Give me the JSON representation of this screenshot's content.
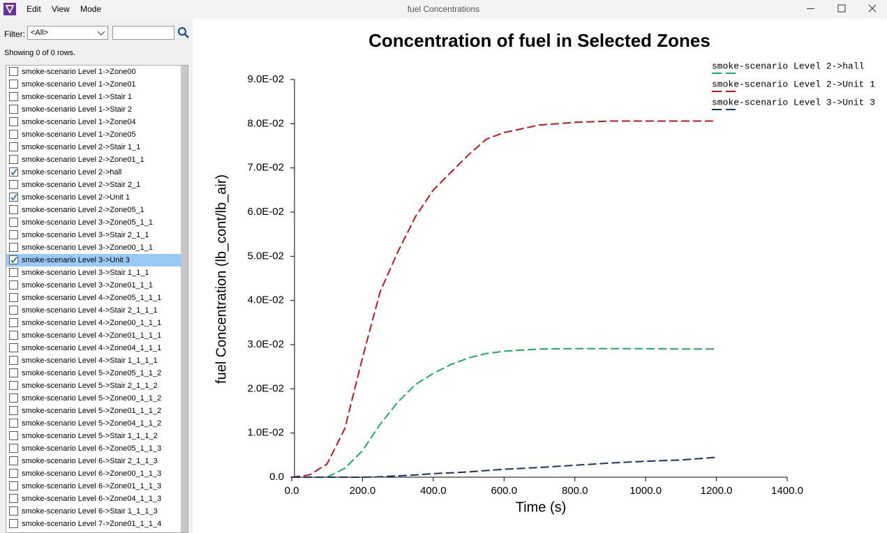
{
  "window": {
    "title": "fuel Concentrations",
    "menu": [
      "Edit",
      "View",
      "Mode"
    ]
  },
  "sidebar": {
    "filter_label": "Filter:",
    "filter_value": "<All>",
    "status": "Showing 0 of 0 rows.",
    "items": [
      {
        "label": "smoke-scenario Level 1->Zone00",
        "checked": false
      },
      {
        "label": "smoke-scenario Level 1->Zone01",
        "checked": false
      },
      {
        "label": "smoke-scenario Level 1->Stair 1",
        "checked": false
      },
      {
        "label": "smoke-scenario Level 1->Stair 2",
        "checked": false
      },
      {
        "label": "smoke-scenario Level 1->Zone04",
        "checked": false
      },
      {
        "label": "smoke-scenario Level 1->Zone05",
        "checked": false
      },
      {
        "label": "smoke-scenario Level 2->Stair 1_1",
        "checked": false
      },
      {
        "label": "smoke-scenario Level 2->Zone01_1",
        "checked": false
      },
      {
        "label": "smoke-scenario Level 2->hall",
        "checked": true
      },
      {
        "label": "smoke-scenario Level 2->Stair 2_1",
        "checked": false
      },
      {
        "label": "smoke-scenario Level 2->Unit 1",
        "checked": true
      },
      {
        "label": "smoke-scenario Level 2->Zone05_1",
        "checked": false
      },
      {
        "label": "smoke-scenario Level 3->Zone05_1_1",
        "checked": false
      },
      {
        "label": "smoke-scenario Level 3->Stair 2_1_1",
        "checked": false
      },
      {
        "label": "smoke-scenario Level 3->Zone00_1_1",
        "checked": false
      },
      {
        "label": "smoke-scenario Level 3->Unit 3",
        "checked": true,
        "selected": true
      },
      {
        "label": "smoke-scenario Level 3->Stair 1_1_1",
        "checked": false
      },
      {
        "label": "smoke-scenario Level 3->Zone01_1_1",
        "checked": false
      },
      {
        "label": "smoke-scenario Level 4->Zone05_1_1_1",
        "checked": false
      },
      {
        "label": "smoke-scenario Level 4->Stair 2_1_1_1",
        "checked": false
      },
      {
        "label": "smoke-scenario Level 4->Zone00_1_1_1",
        "checked": false
      },
      {
        "label": "smoke-scenario Level 4->Zone01_1_1_1",
        "checked": false
      },
      {
        "label": "smoke-scenario Level 4->Zone04_1_1_1",
        "checked": false
      },
      {
        "label": "smoke-scenario Level 4->Stair 1_1_1_1",
        "checked": false
      },
      {
        "label": "smoke-scenario Level 5->Zone05_1_1_2",
        "checked": false
      },
      {
        "label": "smoke-scenario Level 5->Stair 2_1_1_2",
        "checked": false
      },
      {
        "label": "smoke-scenario Level 5->Zone00_1_1_2",
        "checked": false
      },
      {
        "label": "smoke-scenario Level 5->Zone01_1_1_2",
        "checked": false
      },
      {
        "label": "smoke-scenario Level 5->Zone04_1_1_2",
        "checked": false
      },
      {
        "label": "smoke-scenario Level 5->Stair 1_1_1_2",
        "checked": false
      },
      {
        "label": "smoke-scenario Level 6->Zone05_1_1_3",
        "checked": false
      },
      {
        "label": "smoke-scenario Level 6->Stair 2_1_1_3",
        "checked": false
      },
      {
        "label": "smoke-scenario Level 6->Zone00_1_1_3",
        "checked": false
      },
      {
        "label": "smoke-scenario Level 6->Zone01_1_1_3",
        "checked": false
      },
      {
        "label": "smoke-scenario Level 6->Zone04_1_1_3",
        "checked": false
      },
      {
        "label": "smoke-scenario Level 6->Stair 1_1_1_3",
        "checked": false
      },
      {
        "label": "smoke-scenario Level 7->Zone01_1_1_4",
        "checked": false
      }
    ]
  },
  "chart_data": {
    "type": "line",
    "title": "Concentration of fuel in Selected Zones",
    "x_label": "Time (s)",
    "y_label": "fuel Concentration (lb_cont/lb_air)",
    "x": [
      0,
      50,
      100,
      150,
      200,
      250,
      300,
      350,
      400,
      450,
      500,
      550,
      600,
      700,
      800,
      900,
      1000,
      1100,
      1200
    ],
    "series": [
      {
        "name": "smoke-scenario Level 2->hall",
        "color": "#1aaf5d",
        "values": [
          0,
          0,
          0,
          0.002,
          0.006,
          0.012,
          0.017,
          0.021,
          0.0235,
          0.0255,
          0.027,
          0.028,
          0.0285,
          0.029,
          0.0291,
          0.0291,
          0.0291,
          0.029,
          0.029
        ]
      },
      {
        "name": "smoke-scenario Level 2->Unit 1",
        "color": "#c0171d",
        "values": [
          0,
          0.0005,
          0.003,
          0.011,
          0.027,
          0.042,
          0.051,
          0.059,
          0.065,
          0.069,
          0.073,
          0.0765,
          0.078,
          0.0797,
          0.0803,
          0.0806,
          0.0806,
          0.0806,
          0.0806
        ]
      },
      {
        "name": "smoke-scenario Level 3->Unit 3",
        "color": "#14336e",
        "values": [
          0,
          0,
          0,
          0,
          0,
          0.0001,
          0.0003,
          0.0005,
          0.0008,
          0.001,
          0.0012,
          0.0015,
          0.0018,
          0.0022,
          0.0027,
          0.0032,
          0.0036,
          0.0039,
          0.0045
        ]
      }
    ],
    "xlim": [
      0,
      1400
    ],
    "xticks": [
      {
        "value": 0,
        "label": "0.0"
      },
      {
        "value": 200,
        "label": "200.0"
      },
      {
        "value": 400,
        "label": "400.0"
      },
      {
        "value": 600,
        "label": "600.0"
      },
      {
        "value": 800,
        "label": "800.0"
      },
      {
        "value": 1000,
        "label": "1000.0"
      },
      {
        "value": 1200,
        "label": "1200.0"
      },
      {
        "value": 1400,
        "label": "1400.0"
      }
    ],
    "ylim": [
      0,
      0.09
    ],
    "yticks": [
      {
        "value": 0,
        "label": "0.0"
      },
      {
        "value": 0.01,
        "label": "1.0E-02"
      },
      {
        "value": 0.02,
        "label": "2.0E-02"
      },
      {
        "value": 0.03,
        "label": "3.0E-02"
      },
      {
        "value": 0.04,
        "label": "4.0E-02"
      },
      {
        "value": 0.05,
        "label": "5.0E-02"
      },
      {
        "value": 0.06,
        "label": "6.0E-02"
      },
      {
        "value": 0.07,
        "label": "7.0E-02"
      },
      {
        "value": 0.08,
        "label": "8.0E-02"
      },
      {
        "value": 0.09,
        "label": "9.0E-02"
      }
    ],
    "grid": false,
    "legend": "top-right"
  }
}
